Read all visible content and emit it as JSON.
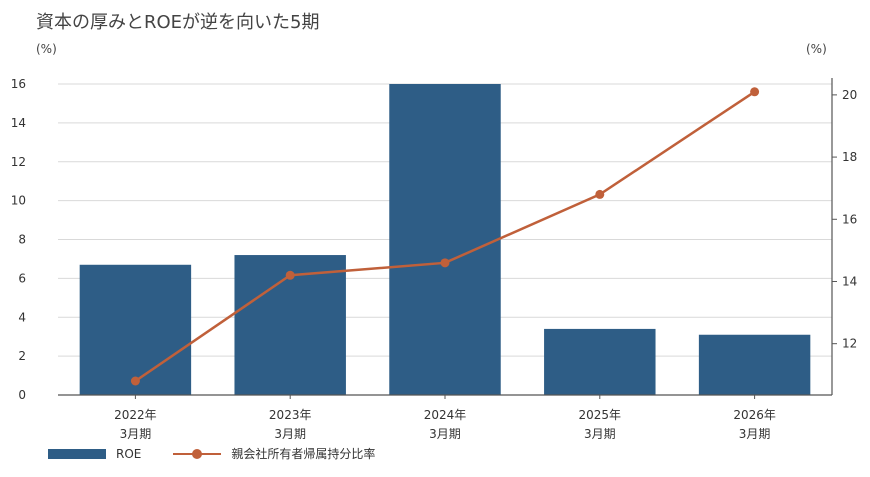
{
  "title": "資本の厚みとROEが逆を向いた5期",
  "colors": {
    "bar": "#2e5d86",
    "line": "#c0603a",
    "grid": "#d9d9d9",
    "axis": "#555555",
    "text": "#333333"
  },
  "chart_data": {
    "type": "bar",
    "categories": [
      [
        "2022年",
        "3月期"
      ],
      [
        "2023年",
        "3月期"
      ],
      [
        "2024年",
        "3月期"
      ],
      [
        "2025年",
        "3月期"
      ],
      [
        "2026年",
        "3月期"
      ]
    ],
    "series": [
      {
        "name": "ROE",
        "type": "bar",
        "axis": "left",
        "values": [
          6.7,
          7.2,
          16.0,
          3.4,
          3.1
        ]
      },
      {
        "name": "親会社所有者帰属持分比率",
        "type": "line",
        "axis": "right",
        "values": [
          10.8,
          14.2,
          14.6,
          16.8,
          20.1
        ]
      }
    ],
    "left_axis": {
      "unit": "(%)",
      "ylim": [
        0,
        16
      ],
      "ticks": [
        0,
        2,
        4,
        6,
        8,
        10,
        12,
        14,
        16
      ]
    },
    "right_axis": {
      "unit": "(%)",
      "ylim": [
        10.35,
        20.35
      ],
      "ticks": [
        12,
        14,
        16,
        18,
        20
      ]
    },
    "grid": true,
    "legend_position": "bottom-left"
  }
}
